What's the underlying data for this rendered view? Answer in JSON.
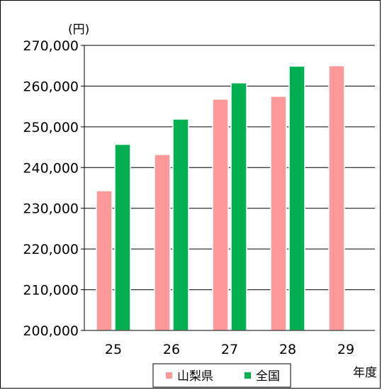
{
  "chart_data": {
    "type": "bar",
    "title": "",
    "xlabel": "年度",
    "ylabel": "(円)",
    "categories": [
      "25",
      "26",
      "27",
      "28",
      "29"
    ],
    "ylim": [
      200000,
      270000
    ],
    "yticks": [
      200000,
      210000,
      220000,
      230000,
      240000,
      250000,
      260000,
      270000
    ],
    "ytick_labels": [
      "200,000",
      "210,000",
      "220,000",
      "230,000",
      "240,000",
      "250,000",
      "260,000",
      "270,000"
    ],
    "grid": true,
    "legend_position": "bottom",
    "series": [
      {
        "name": "山梨県",
        "color": "#ff9999",
        "values": [
          234300,
          243200,
          256800,
          257500,
          265000
        ]
      },
      {
        "name": "全国",
        "color": "#00b050",
        "values": [
          245700,
          251900,
          260800,
          264900,
          null
        ]
      }
    ]
  }
}
